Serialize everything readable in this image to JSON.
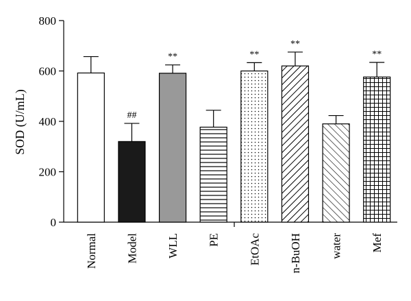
{
  "chart_data": {
    "type": "bar",
    "title": "",
    "xlabel": "",
    "ylabel": "SOD (U/mL)",
    "ylim": [
      0,
      800
    ],
    "yticks": [
      0,
      200,
      400,
      600,
      800
    ],
    "grid": false,
    "legend": "none",
    "categories": [
      "Normal",
      "Model",
      "WLL",
      "PE",
      "EtOAc",
      "n-BuOH",
      "water",
      "Mef"
    ],
    "values": [
      592,
      320,
      591,
      377,
      600,
      620,
      390,
      576
    ],
    "errors": [
      65,
      72,
      33,
      67,
      33,
      55,
      33,
      58
    ],
    "annotations": [
      "",
      "##",
      "**",
      "",
      "**",
      "**",
      "",
      "**"
    ],
    "fills": [
      "white",
      "black",
      "gray",
      "horizontal-lines",
      "dots",
      "diagonal-lines-right",
      "diagonal-lines-left",
      "grid"
    ],
    "colors": {
      "black_fill": "#1a1a1a",
      "gray_fill": "#999999",
      "axis": "#000000"
    }
  }
}
